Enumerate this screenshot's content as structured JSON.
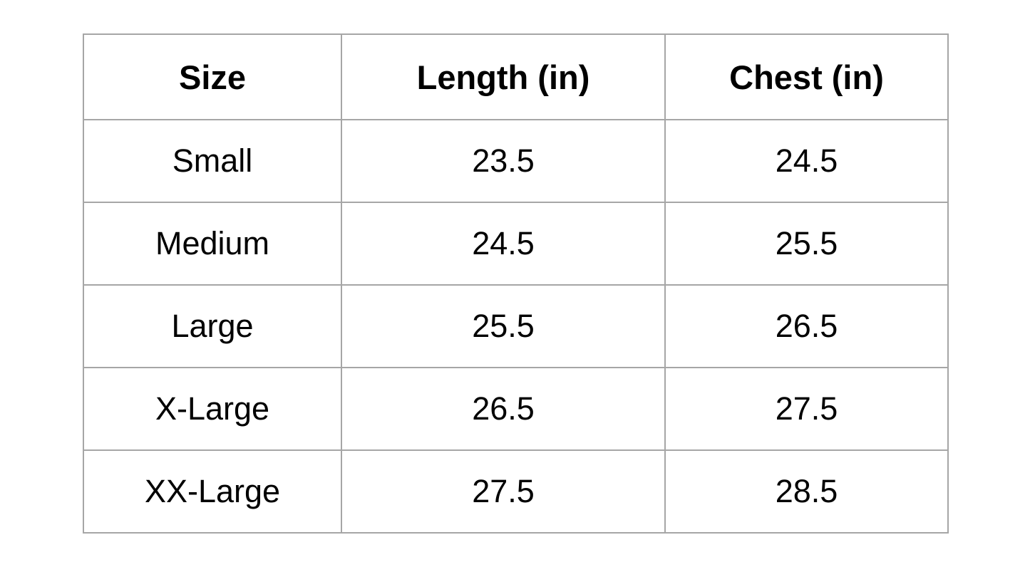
{
  "table": {
    "headers": [
      "Size",
      "Length (in)",
      "Chest (in)"
    ],
    "rows": [
      [
        "Small",
        "23.5",
        "24.5"
      ],
      [
        "Medium",
        "24.5",
        "25.5"
      ],
      [
        "Large",
        "25.5",
        "26.5"
      ],
      [
        "X-Large",
        "26.5",
        "27.5"
      ],
      [
        "XX-Large",
        "27.5",
        "28.5"
      ]
    ]
  }
}
